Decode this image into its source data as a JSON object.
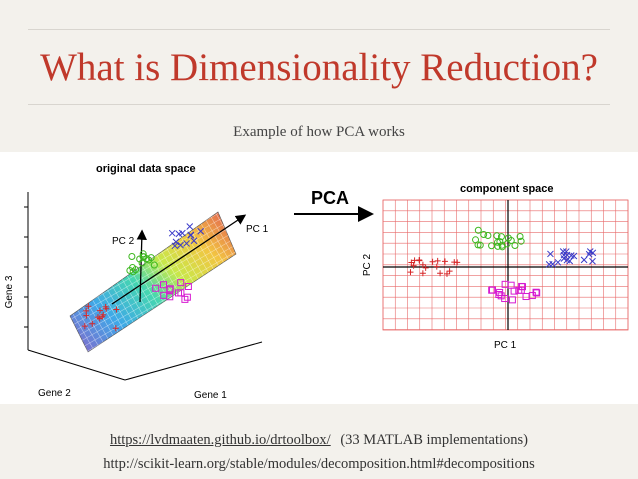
{
  "slide": {
    "title": "What is Dimensionality Reduction?",
    "subtitle": "Example of how PCA works"
  },
  "figure": {
    "left_panel": {
      "title": "original data space",
      "axis_gene1": "Gene 1",
      "axis_gene2": "Gene 2",
      "axis_gene3": "Gene 3",
      "pc1_label": "PC 1",
      "pc2_label": "PC 2"
    },
    "arrow_label": "PCA",
    "right_panel": {
      "title": "component space",
      "xlabel": "PC 1",
      "ylabel": "PC 2"
    }
  },
  "footer": {
    "link1": "https://lvdmaaten.github.io/drtoolbox/",
    "link1_note": "(33 MATLAB implementations)",
    "link2": "http://scikit-learn.org/stable/modules/decomposition.html#decompositions"
  },
  "colors": {
    "title": "#c0392b",
    "cluster_red": "#d62728",
    "cluster_green": "#3cb71e",
    "cluster_magenta": "#d61ad1",
    "cluster_blue": "#3a3ac8",
    "grid": "#e86a6a"
  }
}
